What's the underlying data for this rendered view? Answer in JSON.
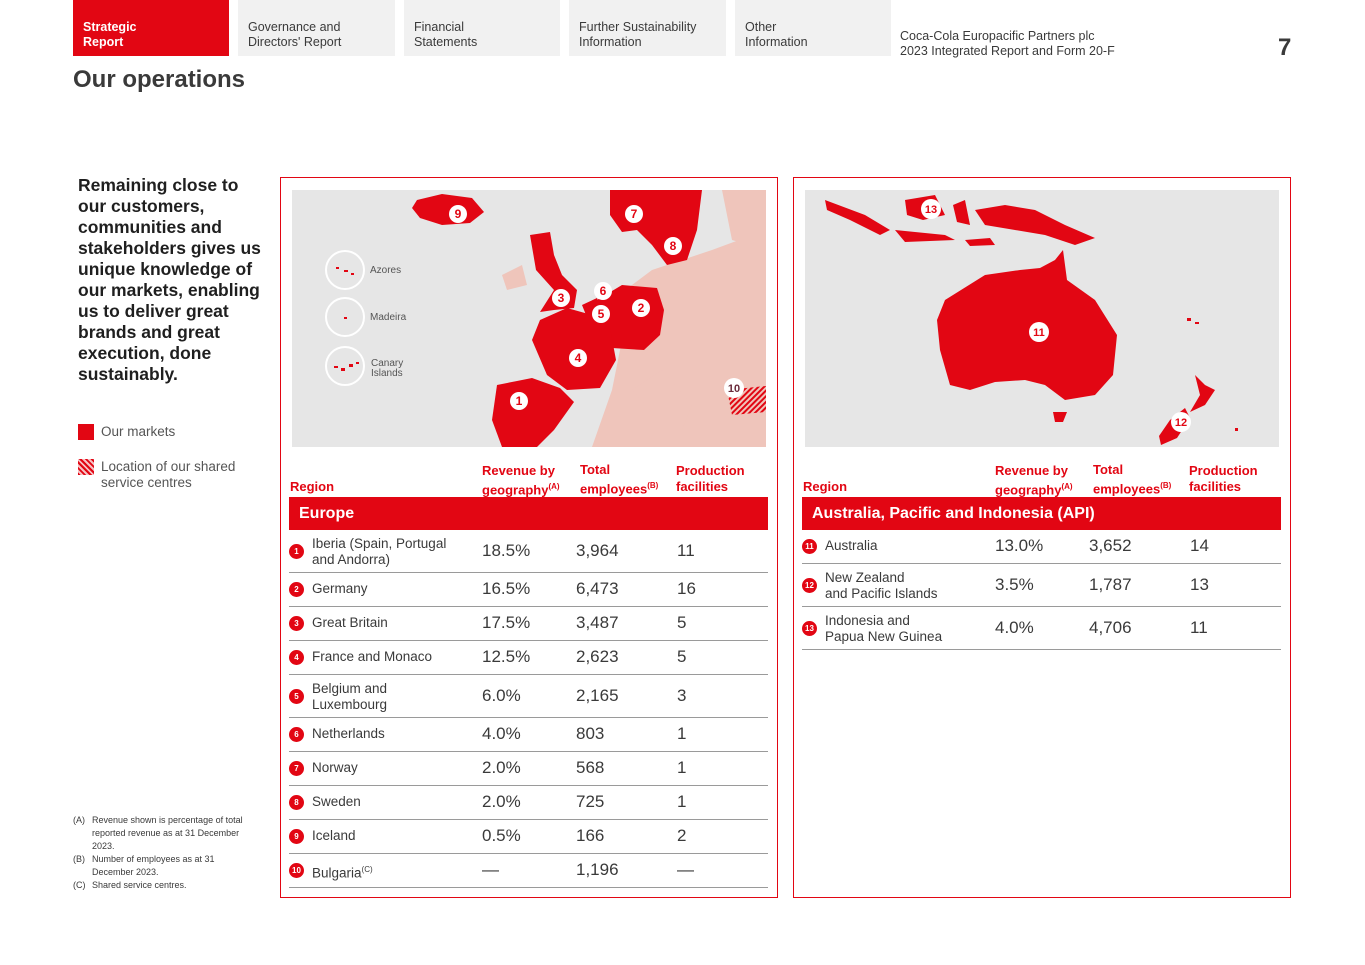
{
  "nav": {
    "tabs": [
      {
        "line1": "Strategic",
        "line2": "Report"
      },
      {
        "line1": "Governance and",
        "line2": "Directors' Report"
      },
      {
        "line1": "Financial",
        "line2": "Statements"
      },
      {
        "line1": "Further Sustainability",
        "line2": "Information"
      },
      {
        "line1": "Other",
        "line2": "Information"
      }
    ],
    "doc_line1": "Coca-Cola Europacific Partners plc",
    "doc_line2": "2023 Integrated Report and Form 20-F",
    "page_number": "7"
  },
  "page_title": "Our operations",
  "intro": "Remaining close to our customers, communities and stakeholders gives us unique knowledge of our markets, enabling us to deliver great brands and great execution, done sustainably.",
  "legend": {
    "markets": "Our markets",
    "shared": "Location of our shared service centres"
  },
  "footnotes": [
    {
      "mark": "(A)",
      "text": "Revenue shown is percentage of total reported revenue as at 31 December 2023."
    },
    {
      "mark": "(B)",
      "text": "Number of employees as at 31 December 2023."
    },
    {
      "mark": "(C)",
      "text": "Shared service centres."
    }
  ],
  "map_labels": {
    "azores": "Azores",
    "madeira": "Madeira",
    "canary_1": "Canary",
    "canary_2": "Islands"
  },
  "columns": {
    "region": "Region",
    "revenue_1": "Revenue by",
    "revenue_2": "geography",
    "revenue_sup": "(A)",
    "employees_1": "Total",
    "employees_2": "employees",
    "employees_sup": "(B)",
    "production_1": "Production",
    "production_2": "facilities"
  },
  "europe": {
    "title": "Europe",
    "rows": [
      {
        "n": "1",
        "line1": "Iberia (Spain, Portugal",
        "line2": "and Andorra)",
        "revenue": "18.5%",
        "employees": "3,964",
        "facilities": "11"
      },
      {
        "n": "2",
        "line1": "Germany",
        "line2": "",
        "revenue": "16.5%",
        "employees": "6,473",
        "facilities": "16"
      },
      {
        "n": "3",
        "line1": "Great Britain",
        "line2": "",
        "revenue": "17.5%",
        "employees": "3,487",
        "facilities": "5"
      },
      {
        "n": "4",
        "line1": "France and Monaco",
        "line2": "",
        "revenue": "12.5%",
        "employees": "2,623",
        "facilities": "5"
      },
      {
        "n": "5",
        "line1": "Belgium and",
        "line2": "Luxembourg",
        "revenue": "6.0%",
        "employees": "2,165",
        "facilities": "3"
      },
      {
        "n": "6",
        "line1": "Netherlands",
        "line2": "",
        "revenue": "4.0%",
        "employees": "803",
        "facilities": "1"
      },
      {
        "n": "7",
        "line1": "Norway",
        "line2": "",
        "revenue": "2.0%",
        "employees": "568",
        "facilities": "1"
      },
      {
        "n": "8",
        "line1": "Sweden",
        "line2": "",
        "revenue": "2.0%",
        "employees": "725",
        "facilities": "1"
      },
      {
        "n": "9",
        "line1": "Iceland",
        "line2": "",
        "revenue": "0.5%",
        "employees": "166",
        "facilities": "2"
      },
      {
        "n": "10",
        "line1": "Bulgaria",
        "sup": "(C)",
        "line2": "",
        "revenue": "—",
        "employees": "1,196",
        "facilities": "—"
      }
    ]
  },
  "api": {
    "title": "Australia, Pacific and Indonesia (API)",
    "rows": [
      {
        "n": "11",
        "line1": "Australia",
        "line2": "",
        "revenue": "13.0%",
        "employees": "3,652",
        "facilities": "14"
      },
      {
        "n": "12",
        "line1": "New Zealand",
        "line2": "and Pacific Islands",
        "revenue": "3.5%",
        "employees": "1,787",
        "facilities": "13"
      },
      {
        "n": "13",
        "line1": "Indonesia and",
        "line2": "Papua New Guinea",
        "revenue": "4.0%",
        "employees": "4,706",
        "facilities": "11"
      }
    ]
  },
  "colors": {
    "brand_red": "#e20613",
    "light_red": "#efc5bb",
    "map_bg": "#e6e6e6"
  }
}
